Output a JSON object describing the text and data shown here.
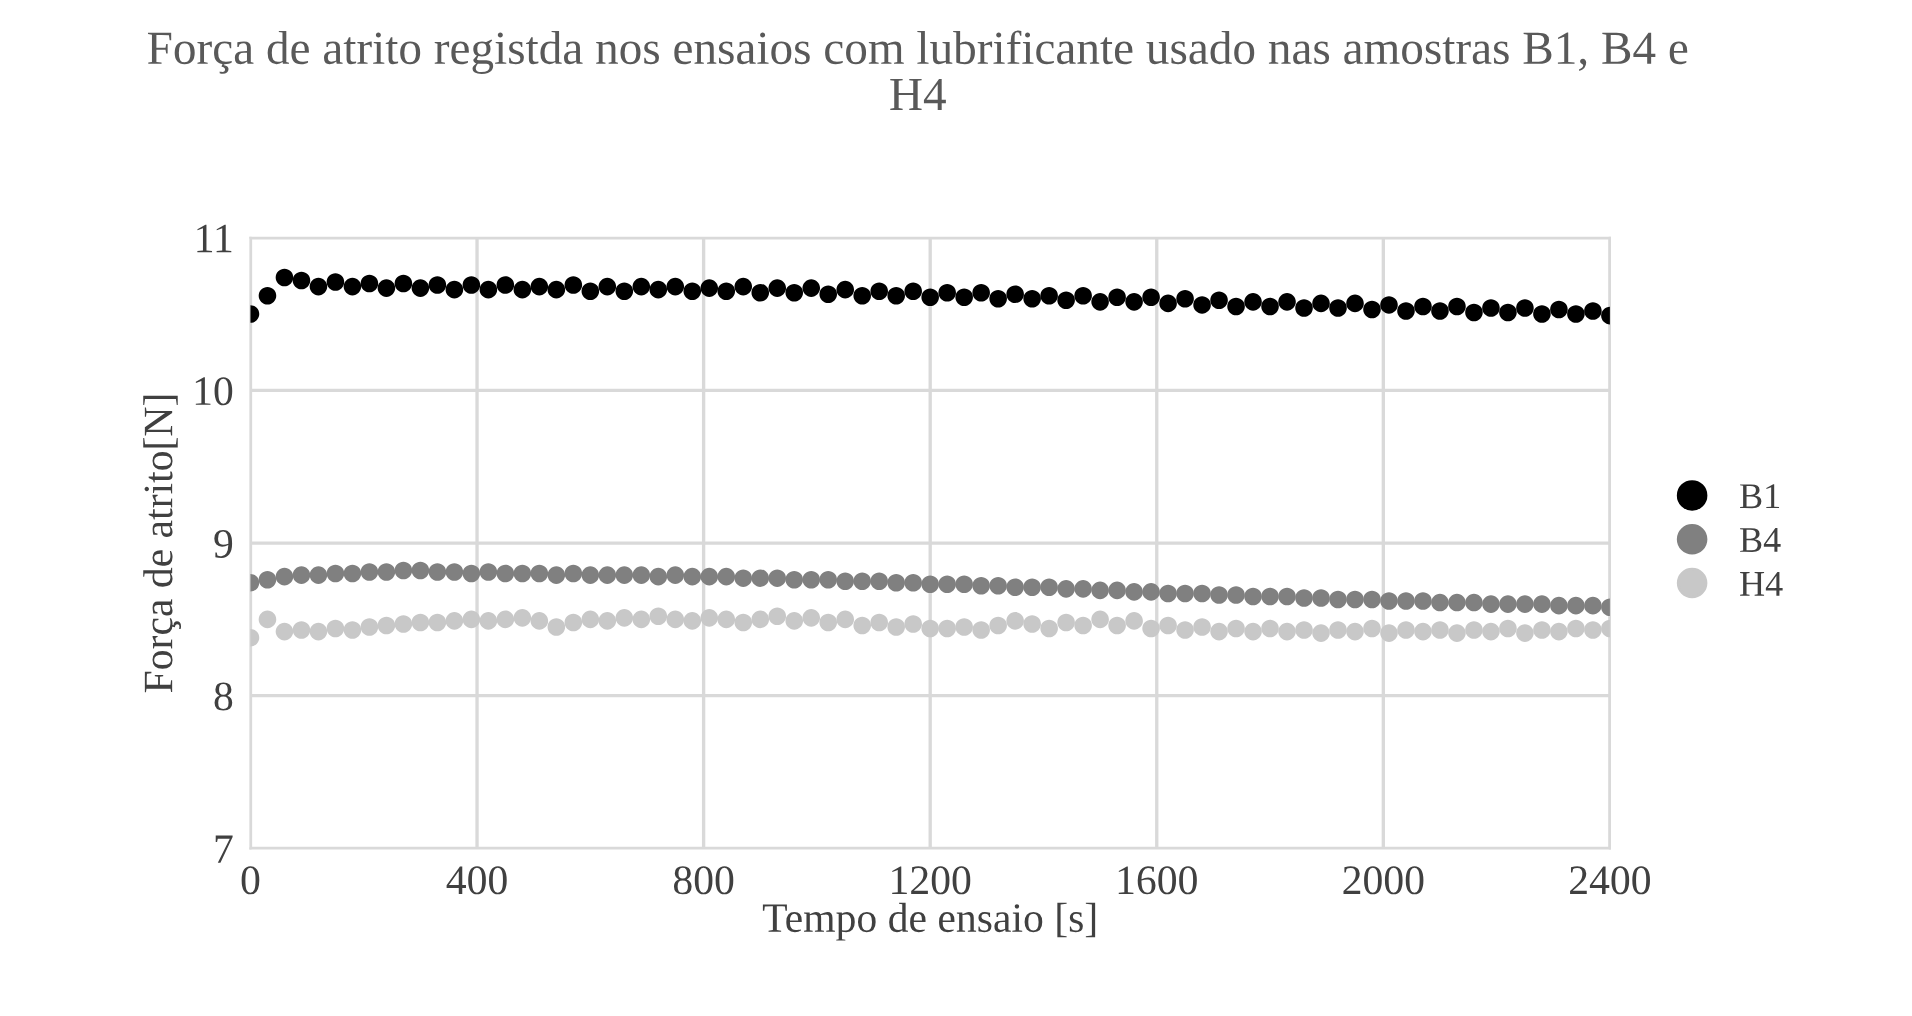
{
  "chart_data": {
    "type": "scatter",
    "title": "Força de atrito registda nos ensaios com lubrificante usado nas amostras B1, B4 e H4",
    "xlabel": "Tempo de ensaio [s]",
    "ylabel": "Força de atrito[N]",
    "x": [
      0,
      30,
      60,
      90,
      120,
      150,
      180,
      210,
      240,
      270,
      300,
      330,
      360,
      390,
      420,
      450,
      480,
      510,
      540,
      570,
      600,
      630,
      660,
      690,
      720,
      750,
      780,
      810,
      840,
      870,
      900,
      930,
      960,
      990,
      1020,
      1050,
      1080,
      1110,
      1140,
      1170,
      1200,
      1230,
      1260,
      1290,
      1320,
      1350,
      1380,
      1410,
      1440,
      1470,
      1500,
      1530,
      1560,
      1590,
      1620,
      1650,
      1680,
      1710,
      1740,
      1770,
      1800,
      1830,
      1860,
      1890,
      1920,
      1950,
      1980,
      2010,
      2040,
      2070,
      2100,
      2130,
      2160,
      2190,
      2220,
      2250,
      2280,
      2310,
      2340,
      2370,
      2400
    ],
    "series": [
      {
        "name": "B1",
        "color": "#000000",
        "values": [
          10.5,
          10.62,
          10.74,
          10.72,
          10.68,
          10.71,
          10.68,
          10.7,
          10.67,
          10.7,
          10.67,
          10.69,
          10.66,
          10.69,
          10.66,
          10.69,
          10.66,
          10.68,
          10.66,
          10.69,
          10.65,
          10.68,
          10.65,
          10.68,
          10.66,
          10.68,
          10.65,
          10.67,
          10.65,
          10.68,
          10.64,
          10.67,
          10.64,
          10.67,
          10.63,
          10.66,
          10.62,
          10.65,
          10.62,
          10.65,
          10.61,
          10.64,
          10.61,
          10.64,
          10.6,
          10.63,
          10.6,
          10.62,
          10.59,
          10.62,
          10.58,
          10.61,
          10.58,
          10.61,
          10.57,
          10.6,
          10.56,
          10.59,
          10.55,
          10.58,
          10.55,
          10.58,
          10.54,
          10.57,
          10.54,
          10.57,
          10.53,
          10.56,
          10.52,
          10.55,
          10.52,
          10.55,
          10.51,
          10.54,
          10.51,
          10.54,
          10.5,
          10.53,
          10.5,
          10.52,
          10.49
        ]
      },
      {
        "name": "B4",
        "color": "#808080",
        "values": [
          8.74,
          8.76,
          8.78,
          8.79,
          8.79,
          8.8,
          8.8,
          8.81,
          8.81,
          8.82,
          8.82,
          8.81,
          8.81,
          8.8,
          8.81,
          8.8,
          8.8,
          8.8,
          8.79,
          8.8,
          8.79,
          8.79,
          8.79,
          8.79,
          8.78,
          8.79,
          8.78,
          8.78,
          8.78,
          8.77,
          8.77,
          8.77,
          8.76,
          8.76,
          8.76,
          8.75,
          8.75,
          8.75,
          8.74,
          8.74,
          8.73,
          8.73,
          8.73,
          8.72,
          8.72,
          8.71,
          8.71,
          8.71,
          8.7,
          8.7,
          8.69,
          8.69,
          8.68,
          8.68,
          8.67,
          8.67,
          8.67,
          8.66,
          8.66,
          8.65,
          8.65,
          8.65,
          8.64,
          8.64,
          8.63,
          8.63,
          8.63,
          8.62,
          8.62,
          8.62,
          8.61,
          8.61,
          8.61,
          8.6,
          8.6,
          8.6,
          8.6,
          8.59,
          8.59,
          8.59,
          8.58
        ]
      },
      {
        "name": "H4",
        "color": "#c8c8c8",
        "values": [
          8.38,
          8.5,
          8.42,
          8.43,
          8.42,
          8.44,
          8.43,
          8.45,
          8.46,
          8.47,
          8.48,
          8.48,
          8.49,
          8.5,
          8.49,
          8.5,
          8.51,
          8.49,
          8.45,
          8.48,
          8.5,
          8.49,
          8.51,
          8.5,
          8.52,
          8.5,
          8.49,
          8.51,
          8.5,
          8.48,
          8.5,
          8.52,
          8.49,
          8.51,
          8.48,
          8.5,
          8.46,
          8.48,
          8.45,
          8.47,
          8.44,
          8.44,
          8.45,
          8.43,
          8.46,
          8.49,
          8.47,
          8.44,
          8.48,
          8.46,
          8.5,
          8.46,
          8.49,
          8.44,
          8.46,
          8.43,
          8.45,
          8.42,
          8.44,
          8.42,
          8.44,
          8.42,
          8.43,
          8.41,
          8.43,
          8.42,
          8.44,
          8.41,
          8.43,
          8.42,
          8.43,
          8.41,
          8.43,
          8.42,
          8.44,
          8.41,
          8.43,
          8.42,
          8.44,
          8.43,
          8.44
        ]
      }
    ],
    "xlim": [
      0,
      2400
    ],
    "xticks": [
      0,
      400,
      800,
      1200,
      1600,
      2000,
      2400
    ],
    "ylim": [
      7,
      11
    ],
    "yticks": [
      7,
      8,
      9,
      10,
      11
    ],
    "grid": true,
    "legend": "right",
    "marker": "circle"
  }
}
